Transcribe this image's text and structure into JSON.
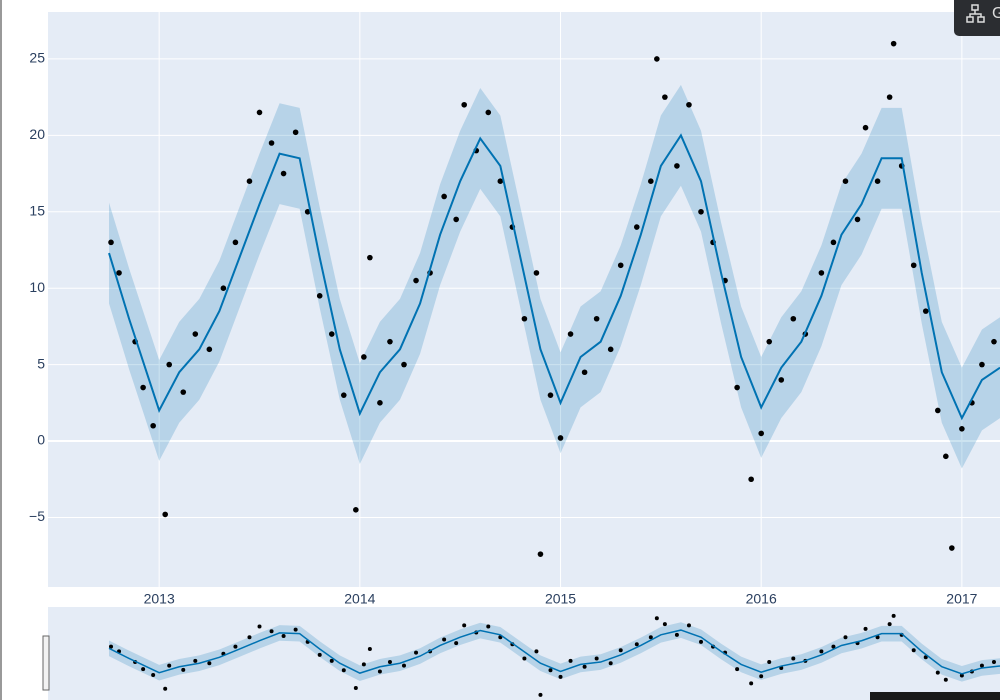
{
  "chart_data": {
    "type": "scatter",
    "x": [
      2012.76,
      2012.8,
      2012.88,
      2012.92,
      2012.97,
      2013.03,
      2013.05,
      2013.12,
      2013.18,
      2013.25,
      2013.32,
      2013.38,
      2013.45,
      2013.5,
      2013.56,
      2013.62,
      2013.68,
      2013.74,
      2013.8,
      2013.86,
      2013.92,
      2013.98,
      2014.02,
      2014.05,
      2014.1,
      2014.15,
      2014.22,
      2014.28,
      2014.35,
      2014.42,
      2014.48,
      2014.52,
      2014.58,
      2014.64,
      2014.7,
      2014.76,
      2014.82,
      2014.88,
      2014.9,
      2014.95,
      2015.0,
      2015.05,
      2015.12,
      2015.18,
      2015.25,
      2015.3,
      2015.38,
      2015.45,
      2015.48,
      2015.52,
      2015.58,
      2015.64,
      2015.7,
      2015.76,
      2015.82,
      2015.88,
      2015.95,
      2016.0,
      2016.04,
      2016.1,
      2016.16,
      2016.22,
      2016.3,
      2016.36,
      2016.42,
      2016.48,
      2016.52,
      2016.58,
      2016.64,
      2016.66,
      2016.7,
      2016.76,
      2016.82,
      2016.88,
      2016.92,
      2016.95,
      2017.0,
      2017.05,
      2017.1,
      2017.16
    ],
    "values": [
      13,
      11,
      6.5,
      3.5,
      1,
      -4.8,
      5,
      3.2,
      7,
      6,
      10,
      13,
      17,
      21.5,
      19.5,
      17.5,
      20.2,
      15,
      9.5,
      7,
      3,
      -4.5,
      5.5,
      12,
      2.5,
      6.5,
      5,
      10.5,
      11,
      16,
      14.5,
      22,
      19,
      21.5,
      17,
      14,
      8,
      11,
      -7.4,
      3,
      0.2,
      7,
      4.5,
      8,
      6,
      11.5,
      14,
      17,
      25,
      22.5,
      18,
      22,
      15,
      13,
      10.5,
      3.5,
      -2.5,
      0.5,
      6.5,
      4,
      8,
      7,
      11,
      13,
      17,
      14.5,
      20.5,
      17,
      22.5,
      26,
      18,
      11.5,
      8.5,
      2,
      -1,
      -7,
      0.8,
      2.5,
      5,
      6.5
    ],
    "color": "#000000",
    "forecast": {
      "x": [
        2012.75,
        2012.85,
        2012.95,
        2013.0,
        2013.1,
        2013.2,
        2013.3,
        2013.4,
        2013.5,
        2013.6,
        2013.7,
        2013.8,
        2013.9,
        2014.0,
        2014.1,
        2014.2,
        2014.3,
        2014.4,
        2014.5,
        2014.6,
        2014.7,
        2014.8,
        2014.9,
        2015.0,
        2015.1,
        2015.2,
        2015.3,
        2015.4,
        2015.5,
        2015.6,
        2015.7,
        2015.8,
        2015.9,
        2016.0,
        2016.1,
        2016.2,
        2016.3,
        2016.4,
        2016.5,
        2016.6,
        2016.7,
        2016.8,
        2016.9,
        2017.0,
        2017.1,
        2017.19
      ],
      "yhat": [
        12.3,
        8,
        4,
        2,
        4.5,
        6,
        8.5,
        12,
        15.5,
        18.8,
        18.5,
        12,
        6,
        1.8,
        4.5,
        6,
        9,
        13.5,
        17,
        19.8,
        18,
        12,
        6,
        2.5,
        5.5,
        6.5,
        9.5,
        13.5,
        18,
        20,
        17,
        11,
        5.5,
        2.2,
        4.8,
        6.5,
        9.5,
        13.5,
        15.5,
        18.5,
        18.5,
        11,
        4.5,
        1.5,
        4,
        4.8
      ],
      "upper": [
        15.6,
        11.3,
        7.3,
        5.3,
        7.8,
        9.3,
        11.8,
        15.3,
        18.8,
        22.1,
        21.8,
        15.3,
        9.3,
        5.1,
        7.8,
        9.3,
        12.3,
        16.8,
        20.3,
        23.1,
        21.3,
        15.3,
        9.3,
        5.8,
        8.8,
        9.8,
        12.8,
        16.8,
        21.3,
        23.3,
        20.3,
        14.3,
        8.8,
        5.5,
        8.1,
        9.8,
        12.8,
        16.8,
        18.8,
        21.8,
        21.8,
        14.3,
        7.8,
        4.8,
        7.3,
        8.1
      ],
      "lower": [
        9,
        4.7,
        0.7,
        -1.3,
        1.2,
        2.7,
        5.2,
        8.7,
        12.2,
        15.5,
        15.2,
        8.7,
        2.7,
        -1.5,
        1.2,
        2.7,
        5.7,
        10.2,
        13.7,
        16.5,
        14.7,
        8.7,
        2.7,
        -0.8,
        2.2,
        3.2,
        6.2,
        10.2,
        14.7,
        16.7,
        13.7,
        7.7,
        2.2,
        -1.1,
        1.5,
        3.2,
        6.2,
        10.2,
        12.2,
        15.2,
        15.2,
        7.7,
        1.2,
        -1.8,
        0.7,
        1.5
      ],
      "line_color": "#0072B2",
      "band_color": "rgba(0,114,178,0.2)"
    },
    "xlim": [
      2012.446,
      2017.19
    ],
    "ylim": [
      -9.55,
      28.07
    ],
    "xticks": [
      2013,
      2014,
      2015,
      2016,
      2017
    ],
    "yticks": [
      {
        "value": -5,
        "label": "−5"
      },
      0,
      5,
      10,
      15,
      20,
      25
    ],
    "grid": true,
    "range_slider": true
  },
  "modebar": {
    "label": "G"
  }
}
